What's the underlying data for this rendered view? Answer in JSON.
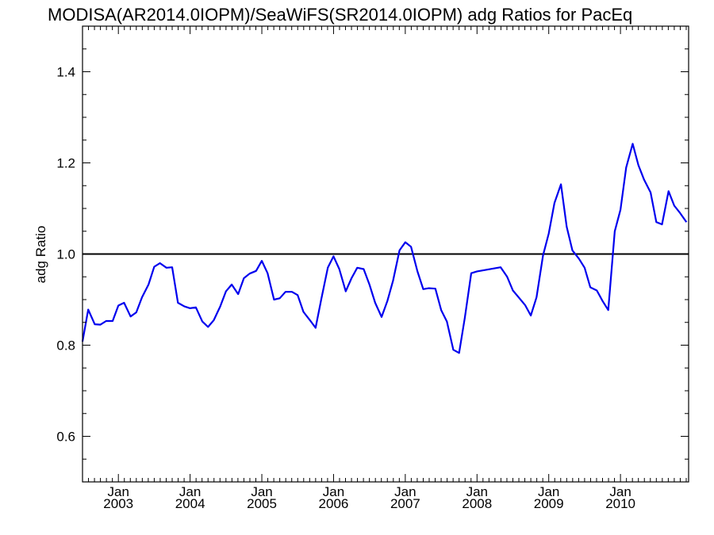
{
  "chart_data": {
    "type": "line",
    "title": "MODISA(AR2014.0IOPM)/SeaWiFS(SR2014.0IOPM)  adg Ratios for PacEq",
    "ylabel": "adg Ratio",
    "xlabel": "",
    "ylim": [
      0.5,
      1.5
    ],
    "yticks": [
      0.6,
      0.8,
      1.0,
      1.2,
      1.4
    ],
    "ytick_labels": [
      "0.6",
      "0.8",
      "1.0",
      "1.2",
      "1.4"
    ],
    "xlim": [
      2002.5,
      2010.95
    ],
    "xticks": [
      {
        "pos": 2003.0,
        "month": "Jan",
        "year": "2003"
      },
      {
        "pos": 2004.0,
        "month": "Jan",
        "year": "2004"
      },
      {
        "pos": 2005.0,
        "month": "Jan",
        "year": "2005"
      },
      {
        "pos": 2006.0,
        "month": "Jan",
        "year": "2006"
      },
      {
        "pos": 2007.0,
        "month": "Jan",
        "year": "2007"
      },
      {
        "pos": 2008.0,
        "month": "Jan",
        "year": "2008"
      },
      {
        "pos": 2009.0,
        "month": "Jan",
        "year": "2009"
      },
      {
        "pos": 2010.0,
        "month": "Jan",
        "year": "2010"
      }
    ],
    "reference_line": 1.0,
    "grid": false,
    "line_color": "#0000ee",
    "reference_color": "#000000",
    "series": [
      {
        "x": [
          2002.5,
          2002.58,
          2002.67,
          2002.75,
          2002.83,
          2002.92,
          2003.0,
          2003.08,
          2003.17,
          2003.25,
          2003.33,
          2003.42,
          2003.5,
          2003.58,
          2003.67,
          2003.75,
          2003.83,
          2003.92,
          2004.0,
          2004.08,
          2004.17,
          2004.25,
          2004.33,
          2004.42,
          2004.5,
          2004.58,
          2004.67,
          2004.75,
          2004.83,
          2004.92,
          2005.0,
          2005.08,
          2005.17,
          2005.25,
          2005.33,
          2005.42,
          2005.5,
          2005.58,
          2005.67,
          2005.75,
          2005.83,
          2005.92,
          2006.0,
          2006.08,
          2006.17,
          2006.25,
          2006.33,
          2006.42,
          2006.5,
          2006.58,
          2006.67,
          2006.75,
          2006.83,
          2006.92,
          2007.0,
          2007.08,
          2007.17,
          2007.25,
          2007.33,
          2007.42,
          2007.5,
          2007.58,
          2007.67,
          2007.75,
          2007.83,
          2007.92,
          2008.0,
          2008.33,
          2008.42,
          2008.5,
          2008.58,
          2008.67,
          2008.75,
          2008.83,
          2008.92,
          2009.0,
          2009.08,
          2009.17,
          2009.25,
          2009.33,
          2009.42,
          2009.5,
          2009.58,
          2009.67,
          2009.75,
          2009.83,
          2009.92,
          2010.0,
          2010.08,
          2010.17,
          2010.25,
          2010.33,
          2010.42,
          2010.5,
          2010.58,
          2010.67,
          2010.75,
          2010.83,
          2010.92
        ],
        "values": [
          0.808,
          0.878,
          0.846,
          0.845,
          0.853,
          0.853,
          0.887,
          0.893,
          0.863,
          0.872,
          0.905,
          0.933,
          0.972,
          0.98,
          0.97,
          0.971,
          0.893,
          0.885,
          0.881,
          0.883,
          0.852,
          0.84,
          0.855,
          0.885,
          0.918,
          0.933,
          0.912,
          0.947,
          0.957,
          0.963,
          0.985,
          0.958,
          0.9,
          0.903,
          0.917,
          0.917,
          0.91,
          0.873,
          0.855,
          0.838,
          0.902,
          0.97,
          0.995,
          0.967,
          0.918,
          0.947,
          0.97,
          0.967,
          0.933,
          0.893,
          0.862,
          0.897,
          0.942,
          1.008,
          1.026,
          1.016,
          0.962,
          0.923,
          0.925,
          0.924,
          0.877,
          0.852,
          0.79,
          0.783,
          0.86,
          0.958,
          0.962,
          0.971,
          0.95,
          0.92,
          0.905,
          0.888,
          0.865,
          0.905,
          0.997,
          1.045,
          1.112,
          1.153,
          1.06,
          1.008,
          0.99,
          0.97,
          0.927,
          0.92,
          0.897,
          0.877,
          1.05,
          1.097,
          1.19,
          1.242,
          1.195,
          1.163,
          1.135,
          1.07,
          1.065,
          1.138,
          1.106,
          1.09,
          1.07
        ]
      }
    ]
  }
}
